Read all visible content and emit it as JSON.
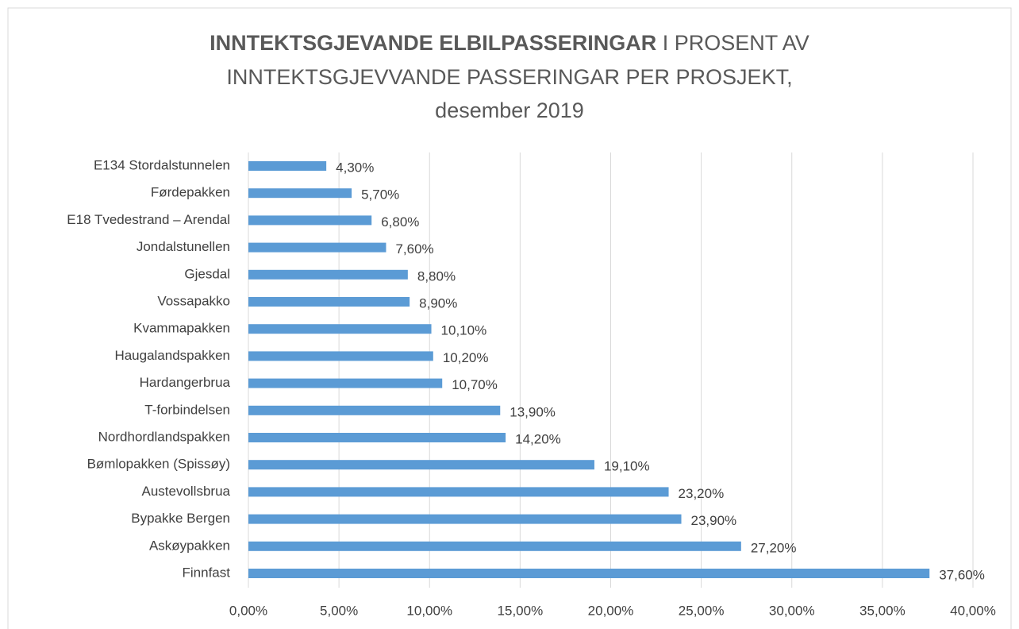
{
  "chart_data": {
    "type": "hbar",
    "title": [
      "INNTEKTSGJEVANDE ELBILPASSERINGAR",
      "I PROSENT AV",
      "INNTEKTSGJEVVANDE PASSERINGAR PER PROSJEKT,",
      "desember 2019"
    ],
    "categories": [
      "E134 Stordalstunnelen",
      "Førdepakken",
      "E18 Tvedestrand – Arendal",
      "Jondalstunellen",
      "Gjesdal",
      "Vossapakko",
      "Kvammapakken",
      "Haugalandspakken",
      "Hardangerbrua",
      "T-forbindelsen",
      "Nordhordlandspakken",
      "Bømlopakken (Spissøy)",
      "Austevollsbrua",
      "Bypakke Bergen",
      "Askøypakken",
      "Finnfast"
    ],
    "values": [
      4.3,
      5.7,
      6.8,
      7.6,
      8.8,
      8.9,
      10.1,
      10.2,
      10.7,
      13.9,
      14.2,
      19.1,
      23.2,
      23.9,
      27.2,
      37.6
    ],
    "value_labels": [
      "4,30%",
      "5,70%",
      "6,80%",
      "7,60%",
      "8,80%",
      "8,90%",
      "10,10%",
      "10,20%",
      "10,70%",
      "13,90%",
      "14,20%",
      "19,10%",
      "23,20%",
      "23,90%",
      "27,20%",
      "37,60%"
    ],
    "color": "#5b9bd5",
    "xlim": [
      0,
      40
    ],
    "xticks": [
      {
        "value": 0,
        "label": "0,00%"
      },
      {
        "value": 5,
        "label": "5,00%"
      },
      {
        "value": 10,
        "label": "10,00%"
      },
      {
        "value": 15,
        "label": "15,00%"
      },
      {
        "value": 20,
        "label": "20,00%"
      },
      {
        "value": 25,
        "label": "25,00%"
      },
      {
        "value": 30,
        "label": "30,00%"
      },
      {
        "value": 35,
        "label": "35,00%"
      },
      {
        "value": 40,
        "label": "40,00%"
      }
    ],
    "grid": true
  }
}
